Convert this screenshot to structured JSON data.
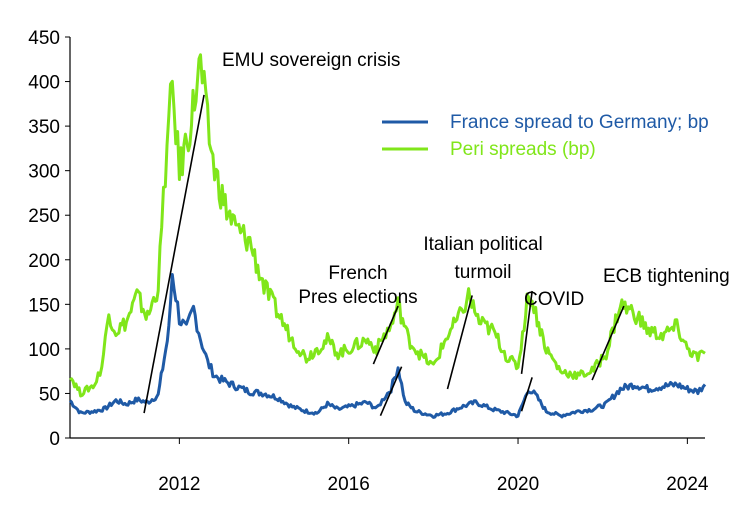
{
  "chart_data": {
    "type": "line",
    "title": "",
    "xlabel": "",
    "ylabel": "",
    "ylim": [
      0,
      450
    ],
    "xlim": [
      "2009-06",
      "2024-06"
    ],
    "yticks": [
      "0",
      "50",
      "100",
      "150",
      "200",
      "250",
      "300",
      "350",
      "400",
      "450"
    ],
    "xticks": [
      {
        "date": "2012-01",
        "label": "2012"
      },
      {
        "date": "2016-01",
        "label": "2016"
      },
      {
        "date": "2020-01",
        "label": "2020"
      },
      {
        "date": "2024-01",
        "label": "2024"
      }
    ],
    "grid": false,
    "legend": "top-right",
    "series": [
      {
        "name": "France spread to Germany; bp",
        "color": "#1f5aa6",
        "points": [
          [
            "2009-06",
            42
          ],
          [
            "2009-09",
            28
          ],
          [
            "2010-01",
            30
          ],
          [
            "2010-04",
            33
          ],
          [
            "2010-07",
            42
          ],
          [
            "2010-10",
            38
          ],
          [
            "2011-01",
            43
          ],
          [
            "2011-04",
            40
          ],
          [
            "2011-07",
            48
          ],
          [
            "2011-10",
            120
          ],
          [
            "2011-11",
            185
          ],
          [
            "2012-01",
            135
          ],
          [
            "2012-03",
            120
          ],
          [
            "2012-05",
            145
          ],
          [
            "2012-07",
            112
          ],
          [
            "2012-09",
            85
          ],
          [
            "2012-11",
            70
          ],
          [
            "2013-01",
            65
          ],
          [
            "2013-05",
            58
          ],
          [
            "2013-09",
            52
          ],
          [
            "2014-01",
            50
          ],
          [
            "2014-05",
            45
          ],
          [
            "2014-09",
            35
          ],
          [
            "2015-01",
            30
          ],
          [
            "2015-04",
            28
          ],
          [
            "2015-07",
            38
          ],
          [
            "2015-10",
            32
          ],
          [
            "2016-01",
            35
          ],
          [
            "2016-06",
            40
          ],
          [
            "2016-09",
            33
          ],
          [
            "2016-11",
            45
          ],
          [
            "2017-01",
            55
          ],
          [
            "2017-03",
            80
          ],
          [
            "2017-05",
            40
          ],
          [
            "2017-08",
            30
          ],
          [
            "2018-01",
            25
          ],
          [
            "2018-05",
            28
          ],
          [
            "2018-09",
            35
          ],
          [
            "2019-01",
            40
          ],
          [
            "2019-06",
            32
          ],
          [
            "2019-10",
            28
          ],
          [
            "2020-01",
            25
          ],
          [
            "2020-04",
            55
          ],
          [
            "2020-06",
            48
          ],
          [
            "2020-09",
            30
          ],
          [
            "2021-01",
            25
          ],
          [
            "2021-06",
            30
          ],
          [
            "2021-10",
            32
          ],
          [
            "2022-02",
            38
          ],
          [
            "2022-06",
            55
          ],
          [
            "2022-10",
            60
          ],
          [
            "2023-02",
            55
          ],
          [
            "2023-06",
            58
          ],
          [
            "2023-10",
            60
          ],
          [
            "2024-01",
            55
          ],
          [
            "2024-04",
            52
          ],
          [
            "2024-06",
            60
          ]
        ]
      },
      {
        "name": "Peri spreads (bp)",
        "color": "#80e61a",
        "points": [
          [
            "2009-06",
            70
          ],
          [
            "2009-09",
            50
          ],
          [
            "2010-01",
            60
          ],
          [
            "2010-03",
            80
          ],
          [
            "2010-05",
            140
          ],
          [
            "2010-07",
            120
          ],
          [
            "2010-10",
            130
          ],
          [
            "2011-01",
            160
          ],
          [
            "2011-04",
            135
          ],
          [
            "2011-07",
            170
          ],
          [
            "2011-09",
            300
          ],
          [
            "2011-11",
            395
          ],
          [
            "2012-01",
            300
          ],
          [
            "2012-04",
            350
          ],
          [
            "2012-07",
            420
          ],
          [
            "2012-09",
            350
          ],
          [
            "2012-11",
            300
          ],
          [
            "2013-02",
            260
          ],
          [
            "2013-05",
            235
          ],
          [
            "2013-09",
            220
          ],
          [
            "2014-01",
            170
          ],
          [
            "2014-05",
            140
          ],
          [
            "2014-09",
            110
          ],
          [
            "2015-01",
            90
          ],
          [
            "2015-04",
            100
          ],
          [
            "2015-07",
            110
          ],
          [
            "2015-10",
            95
          ],
          [
            "2016-01",
            100
          ],
          [
            "2016-06",
            110
          ],
          [
            "2016-09",
            100
          ],
          [
            "2016-11",
            115
          ],
          [
            "2017-01",
            125
          ],
          [
            "2017-03",
            150
          ],
          [
            "2017-06",
            110
          ],
          [
            "2017-09",
            95
          ],
          [
            "2018-01",
            80
          ],
          [
            "2018-05",
            115
          ],
          [
            "2018-09",
            140
          ],
          [
            "2018-11",
            160
          ],
          [
            "2019-02",
            130
          ],
          [
            "2019-06",
            120
          ],
          [
            "2019-10",
            90
          ],
          [
            "2020-01",
            80
          ],
          [
            "2020-04",
            165
          ],
          [
            "2020-06",
            140
          ],
          [
            "2020-09",
            100
          ],
          [
            "2021-01",
            75
          ],
          [
            "2021-06",
            70
          ],
          [
            "2021-10",
            75
          ],
          [
            "2022-02",
            95
          ],
          [
            "2022-06",
            150
          ],
          [
            "2022-10",
            140
          ],
          [
            "2023-02",
            120
          ],
          [
            "2023-06",
            115
          ],
          [
            "2023-10",
            125
          ],
          [
            "2024-01",
            100
          ],
          [
            "2024-04",
            90
          ],
          [
            "2024-06",
            95
          ]
        ]
      }
    ],
    "annotations": [
      {
        "lines": [
          "EMU sovereign crisis"
        ],
        "arrow": [
          [
            "2011-03",
            28
          ],
          [
            "2012-08",
            385
          ]
        ]
      },
      {
        "lines": [
          "French",
          "Pres elections"
        ],
        "arrow": [
          [
            "2016-08",
            83
          ],
          [
            "2017-03",
            148
          ]
        ]
      },
      {
        "lines": [
          "",
          ""
        ],
        "arrow": [
          [
            "2016-10",
            25
          ],
          [
            "2017-04",
            80
          ]
        ]
      },
      {
        "lines": [
          "Italian political",
          "turmoil"
        ],
        "arrow": [
          [
            "2018-05",
            55
          ],
          [
            "2018-12",
            160
          ]
        ]
      },
      {
        "lines": [
          "COVID"
        ],
        "arrow": [
          [
            "2020-02",
            72
          ],
          [
            "2020-05",
            165
          ]
        ]
      },
      {
        "lines": [
          ""
        ],
        "arrow": [
          [
            "2020-02",
            30
          ],
          [
            "2020-05",
            68
          ]
        ]
      },
      {
        "lines": [
          "ECB tightening"
        ],
        "arrow": [
          [
            "2021-10",
            65
          ],
          [
            "2022-07",
            148
          ]
        ]
      }
    ]
  }
}
